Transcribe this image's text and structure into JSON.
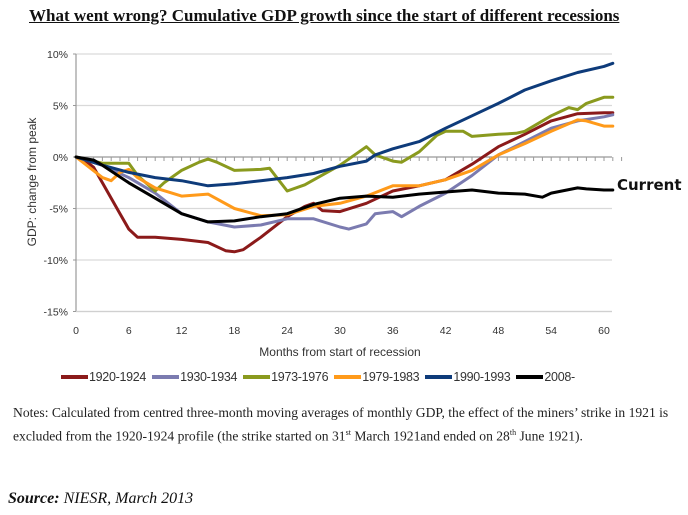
{
  "chart_data": {
    "type": "line",
    "title": "What went wrong? Cumulative GDP growth since the start of different recessions",
    "xlabel": "Months from start of recession",
    "ylabel": "GDP: change from peak",
    "xlim": [
      0,
      62
    ],
    "ylim": [
      -15,
      10
    ],
    "x_ticks": [
      0,
      6,
      12,
      18,
      24,
      30,
      36,
      42,
      48,
      54,
      60
    ],
    "y_ticks": [
      10,
      5,
      0,
      -5,
      -10,
      -15
    ],
    "y_tick_labels": [
      "10%",
      "5%",
      "0%",
      "-5%",
      "-10%",
      "-15%"
    ],
    "grid": "horizontal",
    "legend_position": "bottom",
    "annotation": {
      "text": "Current",
      "series": "2008-"
    },
    "series": [
      {
        "name": "1920-1924",
        "color": "#8B1A1A",
        "x": [
          0,
          1,
          2,
          3,
          4,
          5,
          6,
          7,
          9,
          12,
          15,
          17,
          18,
          19,
          21,
          24,
          26,
          27,
          28,
          30,
          33,
          36,
          39,
          42,
          45,
          48,
          51,
          54,
          57,
          60,
          61
        ],
        "values": [
          0,
          -0.3,
          -1,
          -2.5,
          -4,
          -5.5,
          -7,
          -7.8,
          -7.8,
          -8.0,
          -8.3,
          -9.1,
          -9.2,
          -9.0,
          -7.8,
          -5.8,
          -4.8,
          -4.5,
          -5.2,
          -5.3,
          -4.5,
          -3.3,
          -2.8,
          -2.2,
          -0.7,
          1.0,
          2.2,
          3.5,
          4.2,
          4.3,
          4.3
        ]
      },
      {
        "name": "1930-1934",
        "color": "#7B7BB0",
        "x": [
          0,
          3,
          6,
          9,
          12,
          15,
          18,
          21,
          24,
          27,
          30,
          31,
          33,
          34,
          36,
          37,
          39,
          42,
          45,
          48,
          51,
          54,
          57,
          60,
          61
        ],
        "values": [
          0,
          -0.8,
          -2,
          -3.5,
          -5.5,
          -6.3,
          -6.8,
          -6.6,
          -6.0,
          -6.0,
          -6.8,
          -7.0,
          -6.5,
          -5.5,
          -5.3,
          -5.8,
          -4.8,
          -3.5,
          -1.8,
          0.2,
          1.5,
          2.8,
          3.5,
          3.9,
          4.1
        ]
      },
      {
        "name": "1973-1976",
        "color": "#8A9A1E",
        "x": [
          0,
          3,
          6,
          7,
          9,
          10,
          12,
          14,
          15,
          16,
          18,
          21,
          22,
          24,
          26,
          30,
          33,
          34,
          36,
          37,
          39,
          41,
          42,
          44,
          45,
          48,
          50,
          51,
          54,
          56,
          57,
          58,
          60,
          61
        ],
        "values": [
          0,
          -0.6,
          -0.6,
          -1.8,
          -3.3,
          -2.5,
          -1.3,
          -0.5,
          -0.2,
          -0.5,
          -1.3,
          -1.2,
          -1.1,
          -3.3,
          -2.7,
          -0.8,
          1.0,
          0.2,
          -0.4,
          -0.5,
          0.5,
          2.1,
          2.5,
          2.5,
          2.0,
          2.2,
          2.3,
          2.5,
          4.0,
          4.8,
          4.6,
          5.2,
          5.8,
          5.8
        ]
      },
      {
        "name": "1979-1983",
        "color": "#FF9A1A",
        "x": [
          0,
          3,
          4,
          5,
          6,
          7,
          9,
          12,
          15,
          18,
          21,
          24,
          27,
          30,
          33,
          36,
          39,
          42,
          45,
          48,
          51,
          54,
          57,
          58,
          60,
          61
        ],
        "values": [
          0,
          -2.0,
          -2.3,
          -1.5,
          -1.2,
          -2.0,
          -3.0,
          -3.8,
          -3.6,
          -5.0,
          -5.7,
          -5.6,
          -4.8,
          -4.5,
          -3.8,
          -2.8,
          -2.8,
          -2.2,
          -1.3,
          0.2,
          1.3,
          2.5,
          3.6,
          3.5,
          3.0,
          3.0
        ]
      },
      {
        "name": "1990-1993",
        "color": "#0E3B7A",
        "x": [
          0,
          3,
          6,
          9,
          12,
          15,
          18,
          21,
          24,
          27,
          30,
          33,
          34,
          36,
          39,
          42,
          45,
          48,
          51,
          54,
          57,
          60,
          61
        ],
        "values": [
          0,
          -0.8,
          -1.5,
          -2.0,
          -2.3,
          -2.8,
          -2.6,
          -2.3,
          -2.0,
          -1.6,
          -0.9,
          -0.4,
          0.2,
          0.8,
          1.5,
          2.8,
          4.0,
          5.2,
          6.5,
          7.4,
          8.2,
          8.8,
          9.1
        ]
      },
      {
        "name": "2008-",
        "color": "#000000",
        "x": [
          0,
          2,
          3,
          6,
          9,
          12,
          15,
          18,
          21,
          24,
          27,
          30,
          33,
          36,
          39,
          42,
          45,
          48,
          51,
          53,
          54,
          57,
          58,
          60,
          61
        ],
        "values": [
          0,
          -0.3,
          -0.8,
          -2.5,
          -4.0,
          -5.5,
          -6.3,
          -6.2,
          -5.8,
          -5.5,
          -4.6,
          -4.0,
          -3.8,
          -3.9,
          -3.6,
          -3.4,
          -3.2,
          -3.5,
          -3.6,
          -3.9,
          -3.5,
          -3.0,
          -3.1,
          -3.2,
          -3.2
        ]
      }
    ]
  },
  "page": {
    "title": "What went wrong? Cumulative GDP growth since the start of different recessions",
    "notes_part1": "Notes: Calculated from centred three-month moving averages of monthly GDP, the effect of the miners’ strike in 1921 is excluded from the 1920-1924 profile (the strike started on 31",
    "notes_sup1": "st",
    "notes_part2": " March 1921and ended on 28",
    "notes_sup2": "th",
    "notes_part3": " June 1921).",
    "source_label": "Source:",
    "source_text": " NIESR, March 2013"
  }
}
